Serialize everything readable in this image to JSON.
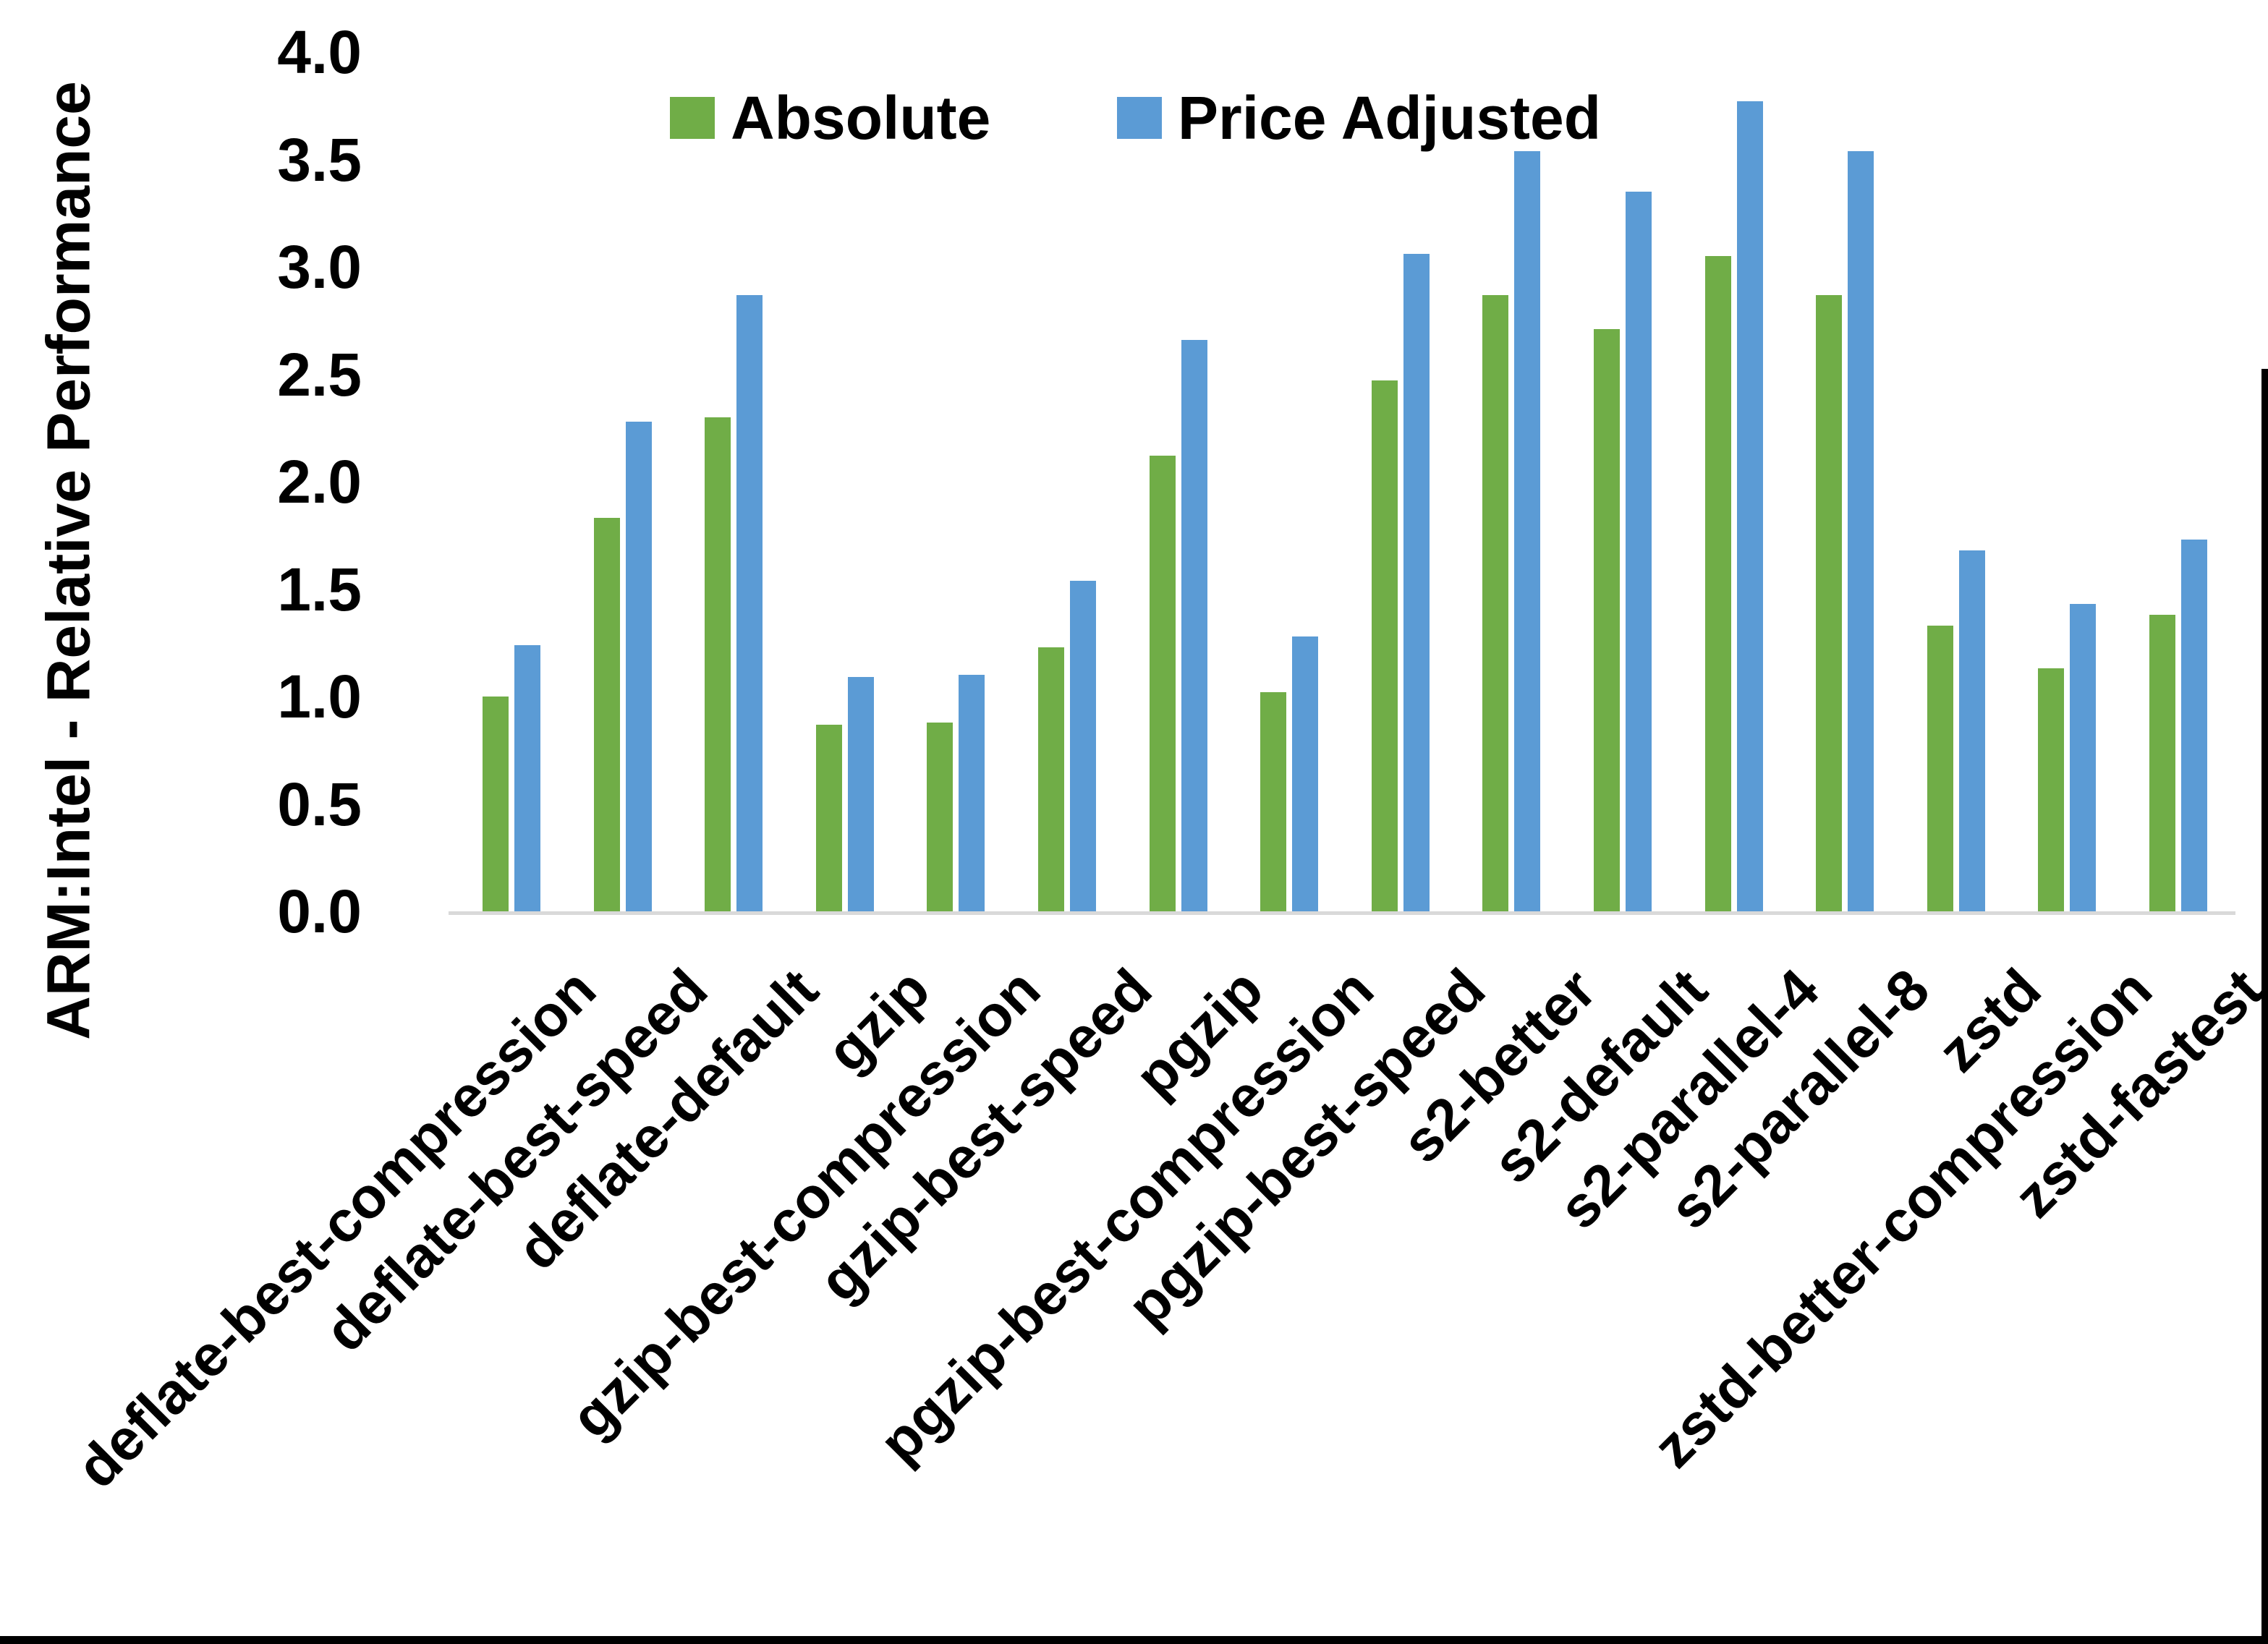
{
  "figure": {
    "background": "#FFFFFF",
    "bottom_border_color": "#000000",
    "right_border_color": "#000000"
  },
  "chart_data": {
    "type": "bar",
    "title": "",
    "xlabel": "",
    "ylabel": "ARM:Intel - Relative Performance",
    "ylim": [
      0.0,
      4.0
    ],
    "ytick_interval": 0.5,
    "ytick_labels": [
      "0.0",
      "0.5",
      "1.0",
      "1.5",
      "2.0",
      "2.5",
      "3.0",
      "3.5",
      "4.0"
    ],
    "grid": false,
    "legend_position": "top",
    "axis_line_color": "#D9D9D9",
    "text_color": "#000000",
    "categories": [
      "deflate-best-compression",
      "deflate-best-speed",
      "deflate-default",
      "gzip",
      "gzip-best-compression",
      "gzip-best-speed",
      "pgzip",
      "pgzip-best-compression",
      "pgzip-best-speed",
      "s2-better",
      "s2-default",
      "s2-parallel-4",
      "s2-parallel-8",
      "zstd",
      "zstd-better-compression",
      "zstd-fastest"
    ],
    "series": [
      {
        "name": "Absolute",
        "color": "#70AD47",
        "values": [
          1.0,
          1.83,
          2.3,
          0.87,
          0.88,
          1.23,
          2.12,
          1.02,
          2.47,
          2.87,
          2.71,
          3.05,
          2.87,
          1.33,
          1.13,
          1.38
        ]
      },
      {
        "name": "Price Adjusted",
        "color": "#5B9BD5",
        "values": [
          1.24,
          2.28,
          2.87,
          1.09,
          1.1,
          1.54,
          2.66,
          1.28,
          3.06,
          3.54,
          3.35,
          3.77,
          3.54,
          1.68,
          1.43,
          1.73
        ]
      }
    ]
  }
}
